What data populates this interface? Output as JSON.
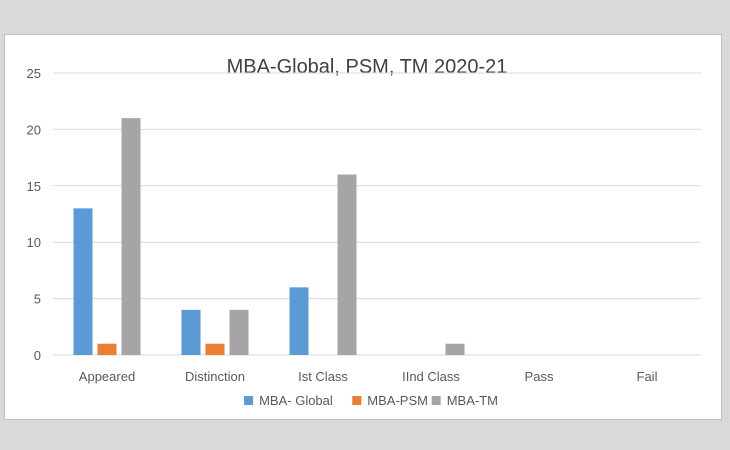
{
  "chart_data": {
    "type": "bar",
    "title": "MBA-Global, PSM, TM 2020-21",
    "categories": [
      "Appeared",
      "Distinction",
      "Ist Class",
      "IInd Class",
      "Pass",
      "Fail"
    ],
    "series": [
      {
        "name": "MBA- Global",
        "color": "#5b9bd5",
        "values": [
          13,
          4,
          6,
          0,
          0,
          0
        ]
      },
      {
        "name": "MBA-PSM",
        "color": "#ed7d31",
        "values": [
          1,
          1,
          0,
          0,
          0,
          0
        ]
      },
      {
        "name": "MBA-TM",
        "color": "#a5a5a5",
        "values": [
          21,
          4,
          16,
          1,
          0,
          0
        ]
      }
    ],
    "ylim": [
      0,
      25
    ],
    "yticks": [
      0,
      5,
      10,
      15,
      20,
      25
    ],
    "grid": true,
    "legend": "bottom",
    "xlabel": "",
    "ylabel": ""
  }
}
